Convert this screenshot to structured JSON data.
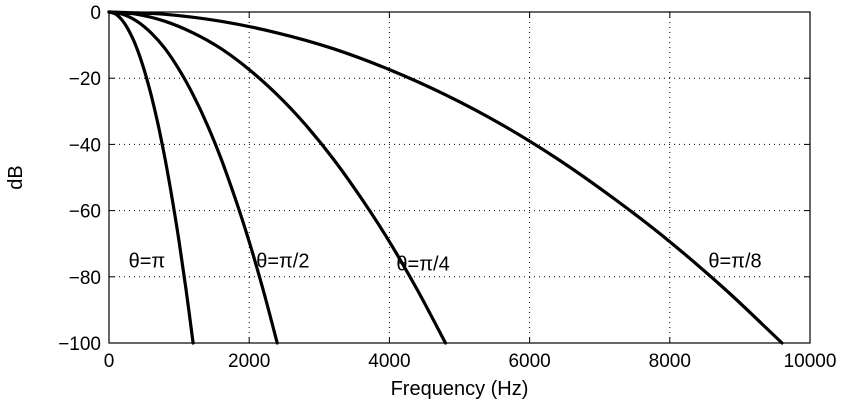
{
  "chart_data": {
    "type": "line",
    "title": "",
    "xlabel": "Frequency (Hz)",
    "ylabel": "dB",
    "xlim": [
      0,
      10000
    ],
    "ylim": [
      -100,
      0
    ],
    "x_ticks": [
      0,
      2000,
      4000,
      6000,
      8000,
      10000
    ],
    "y_ticks": [
      0,
      -20,
      -40,
      -60,
      -80,
      -100
    ],
    "x_tick_labels": [
      "0",
      "2000",
      "4000",
      "6000",
      "8000",
      "10000"
    ],
    "y_tick_labels": [
      "0",
      "−20",
      "−40",
      "−60",
      "−80",
      "−100"
    ],
    "grid": true,
    "legend": "none",
    "series": [
      {
        "name": "θ=π",
        "x": [
          0,
          100,
          200,
          300,
          400,
          500,
          600,
          700,
          800,
          900,
          1000,
          1100,
          1200
        ],
        "y": [
          0,
          -0.7,
          -2.8,
          -6.3,
          -11.1,
          -17.4,
          -25.0,
          -34.0,
          -44.4,
          -56.3,
          -69.4,
          -84.0,
          -100
        ]
      },
      {
        "name": "θ=π/2",
        "x": [
          0,
          200,
          400,
          600,
          800,
          1000,
          1200,
          1400,
          1600,
          1800,
          2000,
          2200,
          2400
        ],
        "y": [
          0,
          -0.7,
          -2.8,
          -6.3,
          -11.1,
          -17.4,
          -25.0,
          -34.0,
          -44.4,
          -56.3,
          -69.4,
          -84.0,
          -100
        ]
      },
      {
        "name": "θ=π/4",
        "x": [
          0,
          400,
          800,
          1200,
          1600,
          2000,
          2400,
          2800,
          3200,
          3600,
          4000,
          4400,
          4800
        ],
        "y": [
          0,
          -0.7,
          -2.8,
          -6.3,
          -11.1,
          -17.4,
          -25.0,
          -34.0,
          -44.4,
          -56.3,
          -69.4,
          -84.0,
          -100
        ]
      },
      {
        "name": "θ=π/8",
        "x": [
          0,
          800,
          1600,
          2400,
          3200,
          4000,
          4800,
          5600,
          6400,
          7200,
          8000,
          8800,
          9600
        ],
        "y": [
          0,
          -0.7,
          -2.8,
          -6.3,
          -11.1,
          -17.4,
          -25.0,
          -34.0,
          -44.4,
          -56.3,
          -69.4,
          -84.0,
          -100
        ]
      }
    ],
    "annotations": [
      {
        "text": "θ=π",
        "x": 280,
        "y": -75
      },
      {
        "text": "θ=π/2",
        "x": 2100,
        "y": -75
      },
      {
        "text": "θ=π/4",
        "x": 4100,
        "y": -76
      },
      {
        "text": "θ=π/8",
        "x": 8550,
        "y": -75
      }
    ]
  }
}
